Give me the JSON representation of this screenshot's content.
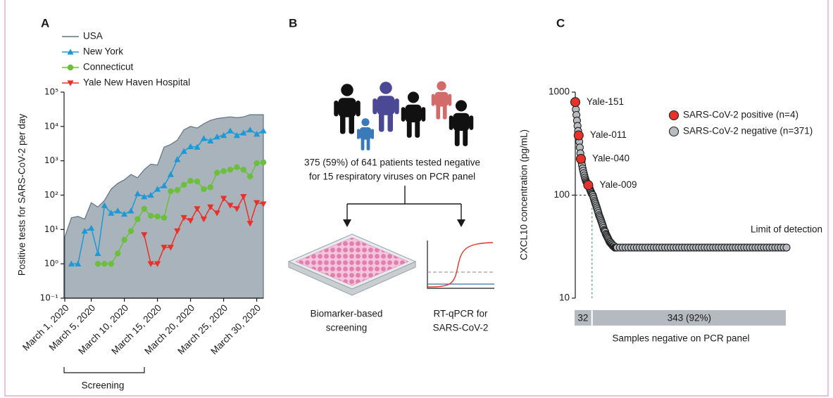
{
  "chart_data": [
    {
      "type": "line",
      "panel_label": "A",
      "y_label": "Positive tests for SARS-CoV-2 per day",
      "x": [
        1,
        2,
        3,
        4,
        5,
        6,
        7,
        8,
        9,
        10,
        11,
        12,
        13,
        14,
        15,
        16,
        17,
        18,
        19,
        20,
        21,
        22,
        23,
        24,
        25,
        26,
        27,
        28,
        29,
        30,
        31
      ],
      "xlim": [
        1,
        31
      ],
      "xticks": [
        {
          "value": 1,
          "label": "March 1, 2020"
        },
        {
          "value": 5,
          "label": "March 5, 2020"
        },
        {
          "value": 10,
          "label": "March 10, 2020"
        },
        {
          "value": 15,
          "label": "March 15, 2020"
        },
        {
          "value": 20,
          "label": "March 20, 2020"
        },
        {
          "value": 25,
          "label": "March 25, 2020"
        },
        {
          "value": 30,
          "label": "March 30, 2020"
        }
      ],
      "ylim": [
        0.1,
        100000
      ],
      "y_scale": "log",
      "yticks": [
        {
          "value": 0.1,
          "label": "10⁻¹"
        },
        {
          "value": 1,
          "label": "10⁰"
        },
        {
          "value": 10,
          "label": "10¹"
        },
        {
          "value": 100,
          "label": "10²"
        },
        {
          "value": 1000,
          "label": "10³"
        },
        {
          "value": 10000,
          "label": "10⁴"
        },
        {
          "value": 100000,
          "label": "10⁵"
        }
      ],
      "annotations": [
        "Screening"
      ],
      "series": [
        {
          "name": "USA",
          "style": "area",
          "color": "#a9b3bb",
          "line_color": "#5f7382",
          "values": [
            6,
            22,
            24,
            20,
            60,
            45,
            70,
            150,
            220,
            280,
            400,
            320,
            550,
            800,
            750,
            2500,
            3000,
            4000,
            8000,
            10000,
            9000,
            12000,
            15000,
            17000,
            18000,
            19000,
            18000,
            19000,
            22000,
            22000,
            22000
          ]
        },
        {
          "name": "New York",
          "marker": "triangle-up",
          "color": "#1b9ad6",
          "values": [
            null,
            1,
            1,
            9,
            11,
            2,
            50,
            30,
            35,
            28,
            35,
            110,
            90,
            100,
            150,
            190,
            400,
            1100,
            1900,
            2600,
            2500,
            4500,
            3800,
            5000,
            5500,
            7500,
            5500,
            6500,
            8000,
            6000,
            7500
          ]
        },
        {
          "name": "Connecticut",
          "marker": "circle",
          "color": "#6cbf3c",
          "values": [
            null,
            null,
            null,
            null,
            null,
            1,
            1,
            1,
            2,
            5,
            9,
            20,
            40,
            25,
            24,
            22,
            130,
            140,
            200,
            260,
            250,
            150,
            170,
            450,
            500,
            550,
            650,
            550,
            350,
            850,
            900
          ]
        },
        {
          "name": "Yale New Haven Hospital",
          "marker": "triangle-down",
          "color": "#e8312a",
          "values": [
            null,
            null,
            null,
            null,
            null,
            null,
            null,
            null,
            null,
            null,
            null,
            null,
            7,
            1,
            1,
            3,
            3,
            9,
            22,
            18,
            40,
            20,
            45,
            30,
            80,
            50,
            40,
            90,
            15,
            60,
            55
          ]
        }
      ]
    },
    {
      "type": "scatter",
      "panel_label": "C",
      "y_label": "CXCL10 concentration  (pg/mL)",
      "x_label": "Samples negative on PCR panel",
      "xlim": [
        1,
        375
      ],
      "ylim": [
        10,
        1000
      ],
      "y_scale": "log",
      "yticks": [
        10,
        100,
        1000
      ],
      "annotations": [
        "Limit of detection"
      ],
      "series": [
        {
          "name": "SARS-CoV-2 positive (n=4)",
          "color": "#e8312a",
          "x": [
            1,
            7,
            11,
            24
          ],
          "values": [
            800,
            380,
            225,
            125
          ],
          "point_labels": [
            "Yale-151",
            "Yale-011",
            "Yale-040",
            "Yale-009"
          ]
        },
        {
          "name": "SARS-CoV-2 negative (n=371)",
          "color": "#b7bcc1",
          "x": [
            2,
            3,
            4,
            5,
            6,
            8,
            9,
            10,
            12,
            13,
            14,
            15,
            16,
            17,
            18,
            19,
            20,
            21,
            22,
            23,
            25,
            26,
            27,
            28,
            29,
            30,
            31,
            32,
            33,
            34,
            35,
            36,
            37,
            38,
            39,
            40,
            41,
            42,
            43,
            44,
            45,
            46,
            47,
            48,
            49,
            50,
            51,
            52,
            53,
            54,
            55,
            56,
            57,
            58,
            59,
            60,
            61,
            62,
            63,
            64,
            65,
            66,
            67,
            68,
            69,
            70,
            71,
            72,
            73,
            74,
            75,
            80,
            85,
            90,
            95,
            100,
            105,
            110,
            115,
            120,
            125,
            130,
            135,
            140,
            145,
            150,
            155,
            160,
            165,
            170,
            175,
            180,
            185,
            190,
            195,
            200,
            205,
            210,
            215,
            220,
            225,
            230,
            235,
            240,
            245,
            250,
            255,
            260,
            265,
            270,
            275,
            280,
            285,
            290,
            295,
            300,
            305,
            310,
            315,
            320,
            325,
            330,
            335,
            340,
            345,
            350,
            355,
            360,
            365,
            370,
            375
          ],
          "values": [
            680,
            600,
            530,
            470,
            420,
            330,
            290,
            255,
            210,
            195,
            182,
            172,
            163,
            155,
            148,
            142,
            137,
            133,
            130,
            127,
            122,
            118,
            114,
            110,
            107,
            104,
            102,
            100,
            96,
            92,
            88,
            85,
            82,
            79,
            76,
            73,
            70,
            67,
            64,
            62,
            60,
            58,
            56,
            54,
            52,
            50,
            48,
            46,
            45,
            44,
            42,
            41,
            40,
            39,
            38,
            37,
            36,
            35,
            35,
            34,
            34,
            33,
            33,
            32,
            32,
            32,
            31,
            31,
            31,
            31,
            31,
            31,
            31,
            31,
            31,
            31,
            31,
            31,
            31,
            31,
            31,
            31,
            31,
            31,
            31,
            31,
            31,
            31,
            31,
            31,
            31,
            31,
            31,
            31,
            31,
            31,
            31,
            31,
            31,
            31,
            31,
            31,
            31,
            31,
            31,
            31,
            31,
            31,
            31,
            31,
            31,
            31,
            31,
            31,
            31,
            31,
            31,
            31,
            31,
            31,
            31,
            31,
            31,
            31,
            31,
            31,
            31,
            31,
            31,
            31,
            31
          ]
        }
      ],
      "counts": {
        "values": [
          32,
          343
        ],
        "value_labels": [
          "32",
          "343 (92%)"
        ],
        "color": "#b4babf"
      }
    }
  ],
  "diagram": {
    "panel_label": "B",
    "caption_lines": [
      "375 (59%) of 641 patients tested negative",
      "for 15 respiratory viruses on PCR panel"
    ],
    "branches": [
      {
        "label_lines": [
          "Biomarker-based",
          "screening"
        ]
      },
      {
        "label_lines": [
          "RT-qPCR for",
          "SARS-CoV-2"
        ]
      }
    ]
  }
}
